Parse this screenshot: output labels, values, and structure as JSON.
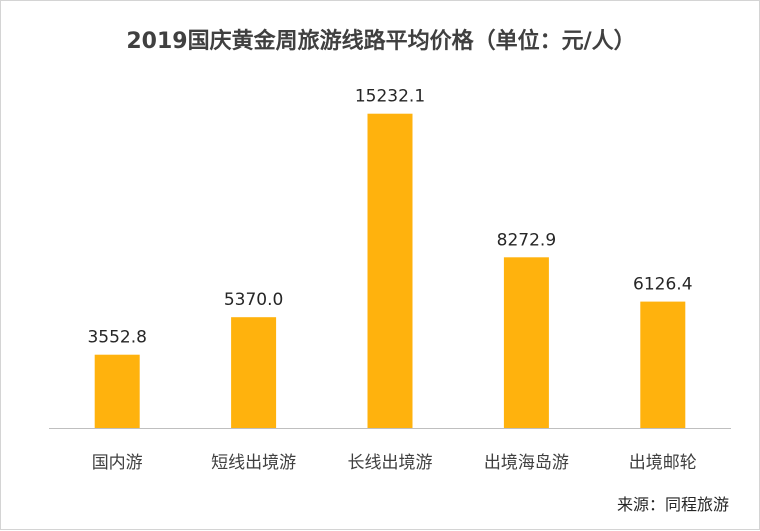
{
  "chart_data": {
    "type": "bar",
    "title": "2019国庆黄金周旅游线路平均价格（单位：元/人）",
    "categories": [
      "国内游",
      "短线出境游",
      "长线出境游",
      "出境海岛游",
      "出境邮轮"
    ],
    "values": [
      3552.8,
      5370.0,
      15232.1,
      8272.9,
      6126.4
    ],
    "value_labels": [
      "3552.8",
      "5370.0",
      "15232.1",
      "8272.9",
      "6126.4"
    ],
    "xlabel": "",
    "ylabel": "",
    "ylim": [
      0,
      16000
    ],
    "grid": false,
    "legend": "none",
    "bar_color": "#FFB20D",
    "axis_color": "#BFBFBF"
  },
  "source_text": "来源：同程旅游"
}
